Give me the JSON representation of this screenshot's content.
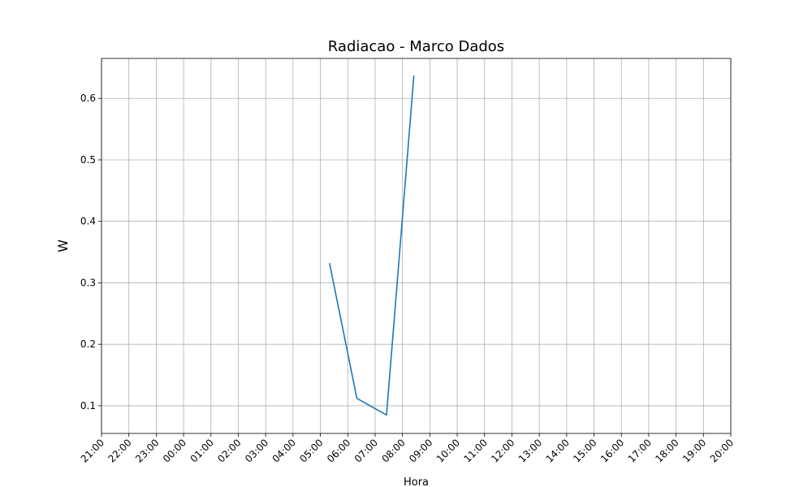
{
  "chart_data": {
    "type": "line",
    "title": "Radiacao - Marco Dados",
    "xlabel": "Hora",
    "ylabel": "W",
    "x_ticks": [
      "21:00",
      "22:00",
      "23:00",
      "00:00",
      "01:00",
      "02:00",
      "03:00",
      "04:00",
      "05:00",
      "06:00",
      "07:00",
      "08:00",
      "09:00",
      "10:00",
      "11:00",
      "12:00",
      "13:00",
      "14:00",
      "15:00",
      "16:00",
      "17:00",
      "18:00",
      "19:00",
      "20:00"
    ],
    "y_ticks": [
      "0.1",
      "0.2",
      "0.3",
      "0.4",
      "0.5",
      "0.6"
    ],
    "ylim": [
      0.055,
      0.665
    ],
    "grid": true,
    "colors": {
      "line": "#1f77b4",
      "grid": "#b0b0b0"
    },
    "series": [
      {
        "x": [
          "05:20",
          "06:20",
          "07:25",
          "08:25"
        ],
        "values": [
          0.332,
          0.112,
          0.085,
          0.637
        ]
      }
    ]
  }
}
